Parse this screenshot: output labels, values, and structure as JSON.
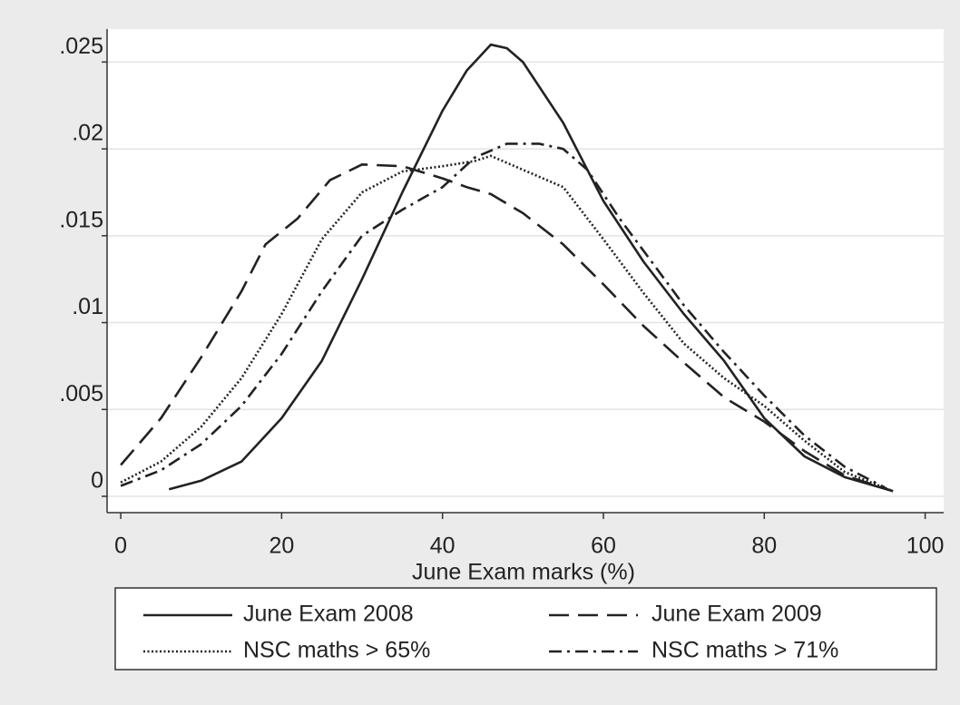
{
  "chart_data": {
    "type": "line",
    "xlabel": "June Exam marks (%)",
    "xlim": [
      -1.7,
      102.3
    ],
    "ylim": [
      -0.00094,
      0.0269
    ],
    "xticks": [
      0,
      20,
      40,
      60,
      80,
      100
    ],
    "yticks": [
      0,
      {
        "value": 0.005,
        "label": ".005"
      },
      {
        "value": 0.01,
        "label": ".01"
      },
      {
        "value": 0.015,
        "label": ".015"
      },
      {
        "value": 0.02,
        "label": ".02"
      },
      {
        "value": 0.025,
        "label": ".025"
      }
    ],
    "grid": true,
    "legend": "bottom",
    "series": [
      {
        "name": "June Exam 2008",
        "color": "#222222",
        "dash": "solid",
        "x": [
          6,
          10,
          15,
          20,
          25,
          30,
          35,
          40,
          43,
          46,
          48,
          50,
          55,
          60,
          65,
          70,
          75,
          80,
          85,
          90,
          96
        ],
        "values": [
          0.0004,
          0.0009,
          0.002,
          0.0045,
          0.0078,
          0.0125,
          0.0175,
          0.0222,
          0.0245,
          0.026,
          0.0258,
          0.025,
          0.0215,
          0.017,
          0.0135,
          0.0105,
          0.0078,
          0.0045,
          0.0023,
          0.0011,
          0.0003
        ]
      },
      {
        "name": "June Exam 2009",
        "color": "#222222",
        "dash": "dashed",
        "x": [
          0,
          5,
          10,
          15,
          18,
          22,
          26,
          30,
          35,
          40,
          43,
          46,
          50,
          55,
          60,
          65,
          70,
          75,
          80,
          85,
          90,
          96
        ],
        "values": [
          0.0018,
          0.0045,
          0.008,
          0.0118,
          0.0145,
          0.016,
          0.0182,
          0.0191,
          0.019,
          0.0183,
          0.0178,
          0.0174,
          0.0163,
          0.0145,
          0.0122,
          0.0098,
          0.0077,
          0.0057,
          0.0043,
          0.0026,
          0.0012,
          0.0003
        ]
      },
      {
        "name": "NSC maths > 65%",
        "color": "#222222",
        "dash": "dotted",
        "x": [
          0,
          5,
          10,
          15,
          20,
          25,
          30,
          35,
          40,
          44,
          46,
          50,
          55,
          60,
          65,
          70,
          75,
          80,
          85,
          90,
          96
        ],
        "values": [
          0.0008,
          0.002,
          0.004,
          0.0068,
          0.0105,
          0.0148,
          0.0175,
          0.0187,
          0.019,
          0.0193,
          0.0196,
          0.0188,
          0.0178,
          0.0148,
          0.0117,
          0.0088,
          0.0068,
          0.0052,
          0.0032,
          0.0014,
          0.0003
        ]
      },
      {
        "name": "NSC maths > 71%",
        "color": "#222222",
        "dash": "dashdot",
        "x": [
          0,
          5,
          10,
          15,
          20,
          25,
          30,
          35,
          40,
          44,
          48,
          52,
          55,
          58,
          62,
          66,
          70,
          75,
          80,
          85,
          90,
          95
        ],
        "values": [
          0.0006,
          0.0015,
          0.003,
          0.0052,
          0.0082,
          0.0118,
          0.015,
          0.0165,
          0.0178,
          0.0195,
          0.0203,
          0.0203,
          0.02,
          0.0188,
          0.016,
          0.0135,
          0.011,
          0.0083,
          0.0058,
          0.0035,
          0.0017,
          0.0005
        ]
      }
    ]
  }
}
